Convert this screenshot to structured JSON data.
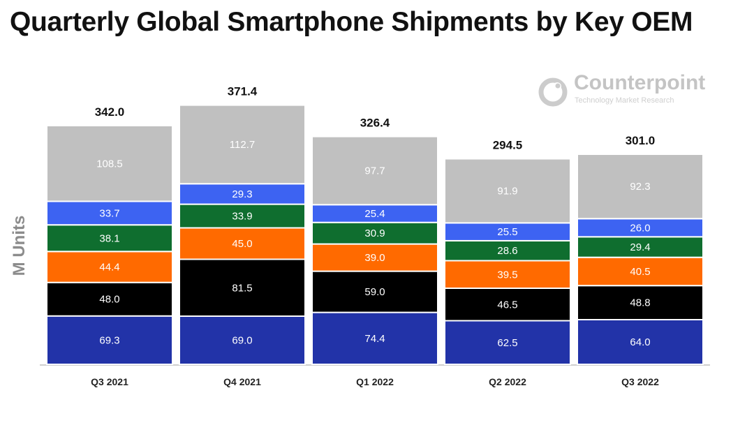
{
  "chart_data": {
    "type": "bar",
    "stacked": true,
    "title": "Quarterly Global Smartphone Shipments by Key OEM",
    "ylabel": "M Units",
    "xlabel": "",
    "categories": [
      "Q3 2021",
      "Q4 2021",
      "Q1 2022",
      "Q2 2022",
      "Q3 2022"
    ],
    "totals": [
      "342.0",
      "371.4",
      "326.4",
      "294.5",
      "301.0"
    ],
    "series": [
      {
        "color": "#2233a8",
        "label_color": "#ffffff",
        "values": [
          69.3,
          69.0,
          74.4,
          62.5,
          64.0
        ]
      },
      {
        "color": "#000000",
        "label_color": "#ffffff",
        "values": [
          48.0,
          81.5,
          59.0,
          46.5,
          48.8
        ]
      },
      {
        "color": "#ff6a00",
        "label_color": "#ffffff",
        "values": [
          44.4,
          45.0,
          39.0,
          39.5,
          40.5
        ]
      },
      {
        "color": "#0f6e2f",
        "label_color": "#ffffff",
        "values": [
          38.1,
          33.9,
          30.9,
          28.6,
          29.4
        ]
      },
      {
        "color": "#3d63f2",
        "label_color": "#ffffff",
        "values": [
          33.7,
          29.3,
          25.4,
          25.5,
          26.0
        ]
      },
      {
        "color": "#c0c0c0",
        "label_color": "#ffffff",
        "values": [
          108.5,
          112.7,
          97.7,
          91.9,
          92.3
        ]
      }
    ],
    "ylim": [
      0,
      400
    ],
    "grid": false,
    "legend": "none"
  },
  "watermark": {
    "name": "Counterpoint",
    "tagline": "Technology Market Research",
    "color": "#c4c4c4"
  }
}
